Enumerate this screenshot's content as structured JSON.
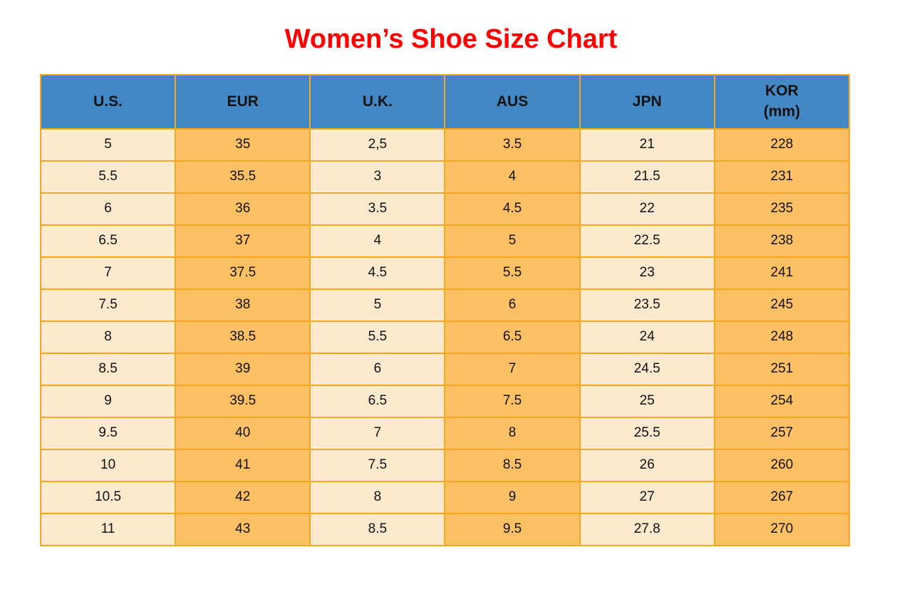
{
  "title": "Women’s Shoe Size Chart",
  "colors": {
    "title_red": "#FF0000",
    "header_blue": "#4288C5",
    "column_cream": "#FDE9CE",
    "column_orange": "#FEC065",
    "border_orange": "#F4A71F",
    "text_black": "#111111"
  },
  "chart_data": {
    "type": "table",
    "title": "Women’s Shoe Size Chart",
    "columns": [
      {
        "label": "U.S.",
        "sublabel": ""
      },
      {
        "label": "EUR",
        "sublabel": ""
      },
      {
        "label": "U.K.",
        "sublabel": ""
      },
      {
        "label": "AUS",
        "sublabel": ""
      },
      {
        "label": "JPN",
        "sublabel": ""
      },
      {
        "label": "KOR",
        "sublabel": "(mm)"
      }
    ],
    "column_styles": [
      "cream",
      "orange",
      "cream",
      "orange",
      "cream",
      "orange"
    ],
    "rows": [
      [
        "5",
        "35",
        "2,5",
        "3.5",
        "21",
        "228"
      ],
      [
        "5.5",
        "35.5",
        "3",
        "4",
        "21.5",
        "231"
      ],
      [
        "6",
        "36",
        "3.5",
        "4.5",
        "22",
        "235"
      ],
      [
        "6.5",
        "37",
        "4",
        "5",
        "22.5",
        "238"
      ],
      [
        "7",
        "37.5",
        "4.5",
        "5.5",
        "23",
        "241"
      ],
      [
        "7.5",
        "38",
        "5",
        "6",
        "23.5",
        "245"
      ],
      [
        "8",
        "38.5",
        "5.5",
        "6.5",
        "24",
        "248"
      ],
      [
        "8.5",
        "39",
        "6",
        "7",
        "24.5",
        "251"
      ],
      [
        "9",
        "39.5",
        "6.5",
        "7.5",
        "25",
        "254"
      ],
      [
        "9.5",
        "40",
        "7",
        "8",
        "25.5",
        "257"
      ],
      [
        "10",
        "41",
        "7.5",
        "8.5",
        "26",
        "260"
      ],
      [
        "10.5",
        "42",
        "8",
        "9",
        "27",
        "267"
      ],
      [
        "11",
        "43",
        "8.5",
        "9.5",
        "27.8",
        "270"
      ]
    ]
  }
}
